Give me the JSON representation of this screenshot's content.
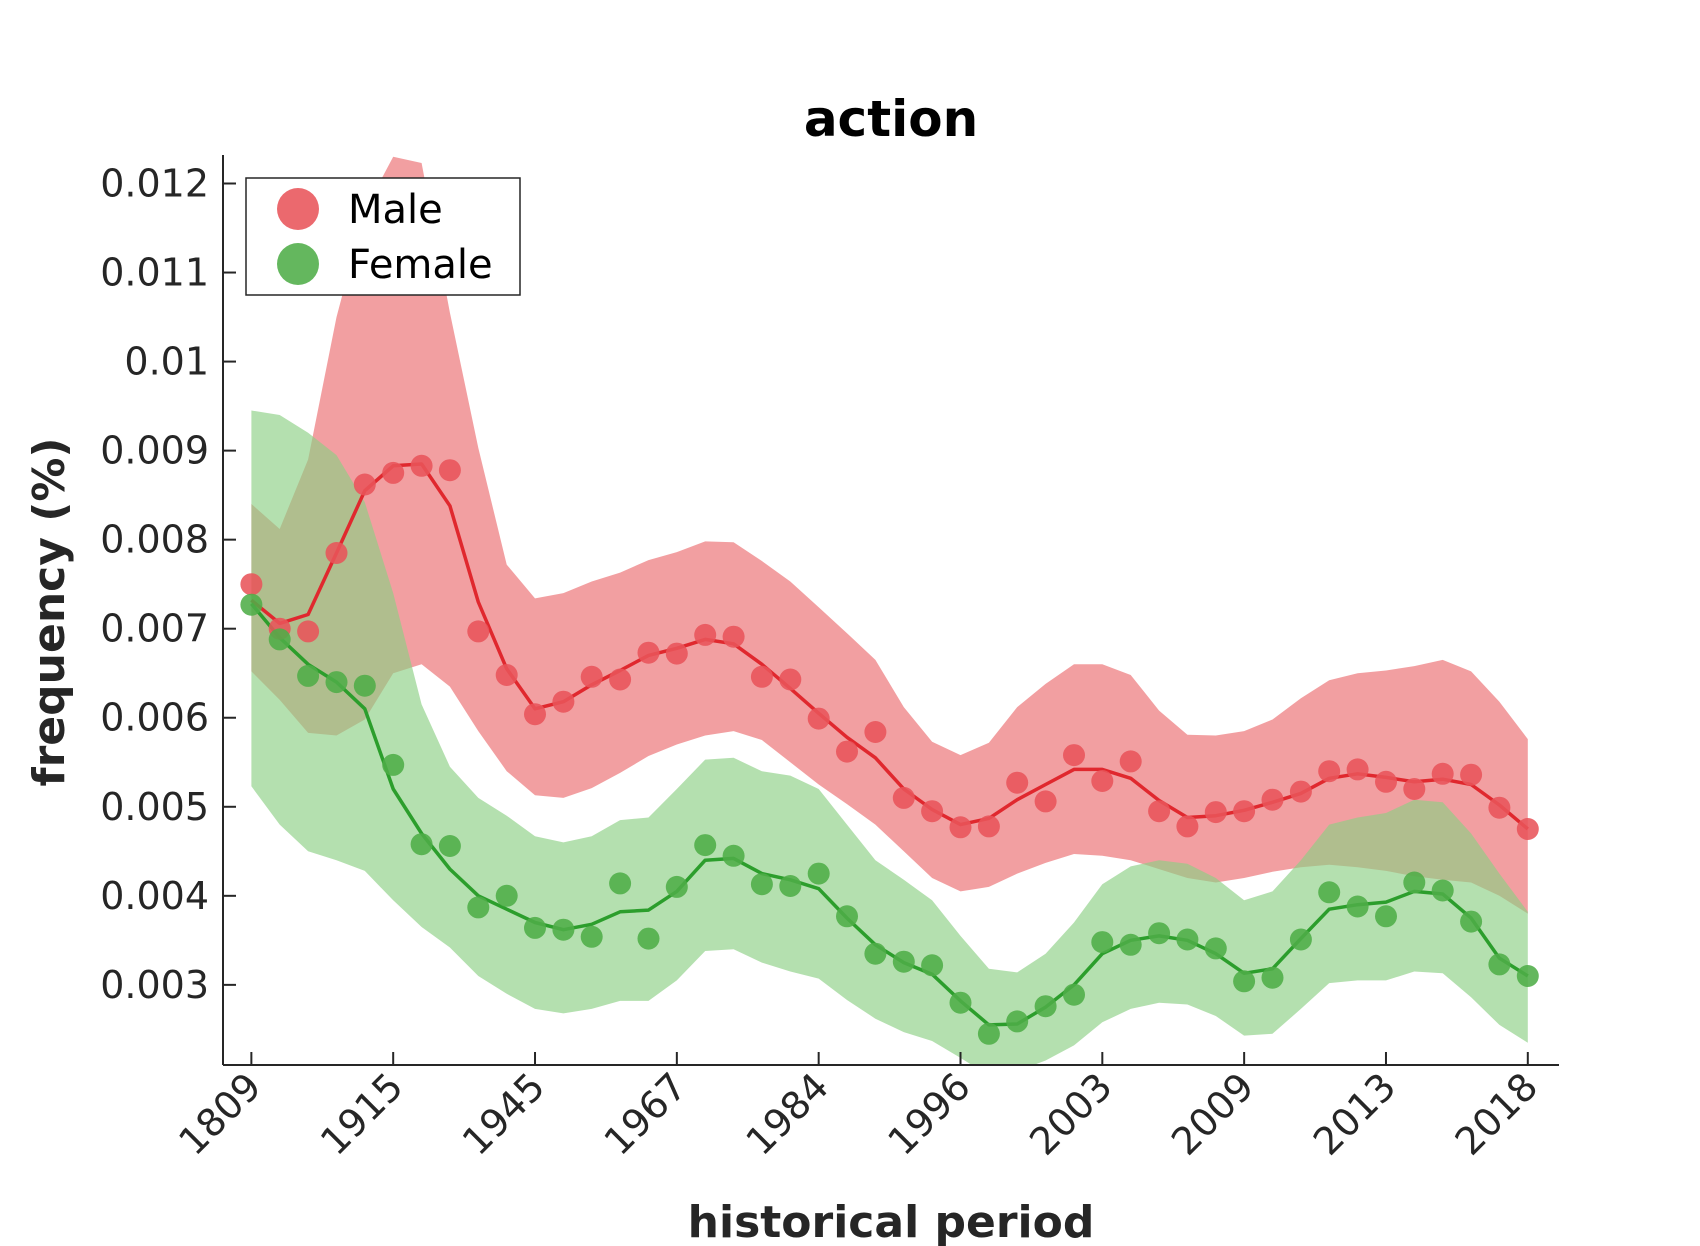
{
  "chart_data": {
    "type": "line",
    "title": "action",
    "xlabel": "historical period",
    "ylabel": "frequency (%)",
    "x_tick_labels": [
      "1809",
      "1915",
      "1945",
      "1967",
      "1984",
      "1996",
      "2003",
      "2009",
      "2013",
      "2018"
    ],
    "y_tick_labels": [
      "0.003",
      "0.004",
      "0.005",
      "0.006",
      "0.007",
      "0.008",
      "0.009",
      "0.01",
      "0.011",
      "0.012"
    ],
    "y_ticks": [
      0.003,
      0.004,
      0.005,
      0.006,
      0.007,
      0.008,
      0.009,
      0.01,
      0.011,
      0.012
    ],
    "ylim": [
      0.0021,
      0.01232
    ],
    "x_index_range": [
      -1,
      46.1
    ],
    "legend_position": "top-left",
    "grid": false,
    "series": [
      {
        "name": "Male",
        "color": "#e0282e",
        "band_color": "#eb6c6e",
        "marker_color": "#e8545a",
        "points": [
          0.0075,
          0.007,
          0.00697,
          0.00785,
          0.00862,
          0.00875,
          0.00883,
          0.00878,
          0.00697,
          0.00648,
          0.00604,
          0.00618,
          0.00646,
          0.00643,
          0.00673,
          0.00672,
          0.00693,
          0.00691,
          0.00646,
          0.00643,
          0.00599,
          0.00562,
          0.00584,
          0.0051,
          0.00495,
          0.00477,
          0.00478,
          0.00527,
          0.00506,
          0.00558,
          0.00529,
          0.00551,
          0.00495,
          0.00478,
          0.00494,
          0.00495,
          0.00508,
          0.00517,
          0.0054,
          0.00542,
          0.00528,
          0.0052,
          0.00537,
          0.00536,
          0.00499,
          0.00475
        ],
        "trend": [
          0.00732,
          0.00706,
          0.00716,
          0.00785,
          0.00855,
          0.00883,
          0.00885,
          0.00838,
          0.0073,
          0.00655,
          0.0061,
          0.00618,
          0.00637,
          0.00653,
          0.0067,
          0.00678,
          0.00688,
          0.00683,
          0.0066,
          0.00633,
          0.00605,
          0.00578,
          0.00555,
          0.0052,
          0.00497,
          0.0048,
          0.00487,
          0.00508,
          0.00525,
          0.00542,
          0.00542,
          0.00532,
          0.00507,
          0.00488,
          0.0049,
          0.00496,
          0.00505,
          0.00515,
          0.00532,
          0.00537,
          0.00533,
          0.00528,
          0.00531,
          0.00525,
          0.00502,
          0.00475
        ],
        "upper": [
          0.0084,
          0.00812,
          0.0089,
          0.0105,
          0.0117,
          0.0123,
          0.01223,
          0.01055,
          0.00903,
          0.00772,
          0.00734,
          0.0074,
          0.00753,
          0.00763,
          0.00777,
          0.00786,
          0.00798,
          0.00797,
          0.00776,
          0.00753,
          0.00724,
          0.00695,
          0.00665,
          0.00612,
          0.00573,
          0.00558,
          0.00572,
          0.00612,
          0.00638,
          0.0066,
          0.0066,
          0.00648,
          0.00608,
          0.00581,
          0.0058,
          0.00585,
          0.00598,
          0.00622,
          0.00642,
          0.0065,
          0.00653,
          0.00658,
          0.00665,
          0.00652,
          0.00618,
          0.00576
        ],
        "lower": [
          0.00652,
          0.0062,
          0.00583,
          0.0058,
          0.00598,
          0.0065,
          0.0066,
          0.00635,
          0.00585,
          0.0054,
          0.00513,
          0.0051,
          0.00521,
          0.00538,
          0.00557,
          0.0057,
          0.0058,
          0.00585,
          0.00575,
          0.0055,
          0.00525,
          0.00503,
          0.0048,
          0.0045,
          0.0042,
          0.00405,
          0.0041,
          0.00425,
          0.00437,
          0.00447,
          0.00445,
          0.0044,
          0.0043,
          0.0042,
          0.00415,
          0.0042,
          0.00427,
          0.00432,
          0.00435,
          0.00432,
          0.00428,
          0.00422,
          0.00418,
          0.00415,
          0.004,
          0.0038
        ]
      },
      {
        "name": "Female",
        "color": "#2c9e2c",
        "band_color": "#8ccf84",
        "marker_color": "#4fad48",
        "points": [
          0.00727,
          0.00688,
          0.00647,
          0.0064,
          0.00636,
          0.00547,
          0.00458,
          0.00456,
          0.00387,
          0.004,
          0.00364,
          0.00362,
          0.00354,
          0.00414,
          0.00352,
          0.0041,
          0.00457,
          0.00445,
          0.00413,
          0.00411,
          0.00425,
          0.00377,
          0.00335,
          0.00326,
          0.00322,
          0.0028,
          0.00245,
          0.00259,
          0.00276,
          0.00289,
          0.00348,
          0.00345,
          0.00358,
          0.00351,
          0.00341,
          0.00304,
          0.00308,
          0.00351,
          0.00404,
          0.00388,
          0.00377,
          0.00415,
          0.00406,
          0.00371,
          0.00323,
          0.0031
        ],
        "trend": [
          0.00728,
          0.0069,
          0.0066,
          0.0064,
          0.0061,
          0.0052,
          0.0047,
          0.0043,
          0.004,
          0.00385,
          0.0037,
          0.00362,
          0.00368,
          0.00382,
          0.00384,
          0.00405,
          0.0044,
          0.00442,
          0.00425,
          0.00418,
          0.00408,
          0.00375,
          0.00345,
          0.00325,
          0.00312,
          0.00282,
          0.00255,
          0.00256,
          0.00275,
          0.003,
          0.00335,
          0.0035,
          0.00355,
          0.0035,
          0.00335,
          0.00313,
          0.00318,
          0.00352,
          0.00385,
          0.0039,
          0.00393,
          0.00405,
          0.00402,
          0.00375,
          0.0033,
          0.0031
        ],
        "upper": [
          0.00945,
          0.0094,
          0.0092,
          0.00895,
          0.00842,
          0.0074,
          0.00615,
          0.00545,
          0.0051,
          0.0049,
          0.00467,
          0.0046,
          0.00467,
          0.00485,
          0.00488,
          0.0052,
          0.00553,
          0.00555,
          0.0054,
          0.00535,
          0.0052,
          0.0048,
          0.0044,
          0.00418,
          0.00395,
          0.00355,
          0.00318,
          0.00314,
          0.00335,
          0.0037,
          0.00413,
          0.00433,
          0.0044,
          0.00436,
          0.0042,
          0.00395,
          0.00405,
          0.0044,
          0.0048,
          0.00488,
          0.00493,
          0.00508,
          0.00505,
          0.0047,
          0.00425,
          0.00382
        ],
        "lower": [
          0.00523,
          0.0048,
          0.0045,
          0.0044,
          0.00428,
          0.00395,
          0.00365,
          0.00342,
          0.0031,
          0.0029,
          0.00273,
          0.00268,
          0.00273,
          0.00282,
          0.00282,
          0.00305,
          0.00338,
          0.0034,
          0.00325,
          0.00315,
          0.00307,
          0.00283,
          0.00262,
          0.00247,
          0.00237,
          0.00218,
          0.00198,
          0.00203,
          0.00215,
          0.00232,
          0.00258,
          0.00273,
          0.0028,
          0.00278,
          0.00265,
          0.00243,
          0.00245,
          0.00273,
          0.00302,
          0.00305,
          0.00305,
          0.00315,
          0.00313,
          0.00286,
          0.00255,
          0.00235
        ]
      }
    ]
  }
}
